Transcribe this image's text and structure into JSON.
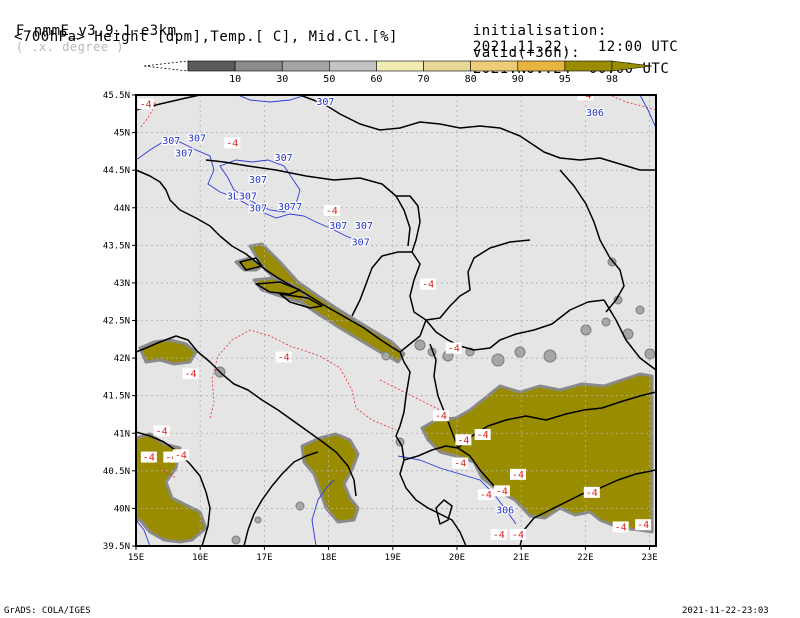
{
  "header": {
    "model_title": "F-nmmE_v3.9.1-e3km",
    "resolution_note": "( .x. degree )",
    "init_label": "initialisation:",
    "init_value": "2021.11.22.   12:00 UTC",
    "subtitle": "<700hPa> Height [dpm],Temp.[ C], Mid.Cl.[%]",
    "valid_label": "valid(+36h):",
    "valid_value": "2021.NOV.24  00:00 UTC"
  },
  "colorbar": {
    "labels": [
      "10",
      "30",
      "50",
      "60",
      "70",
      "80",
      "90",
      "95",
      "98"
    ],
    "colors": [
      "#5a5a5a",
      "#8c8c8c",
      "#a5a5a5",
      "#c3c3c3",
      "#f0ecb4",
      "#e8d896",
      "#eccc78",
      "#e9b440",
      "#9a8c00"
    ]
  },
  "map": {
    "background_color": "#e5e5e5",
    "cloud_color": "#9a8c00",
    "x_ticks": [
      "15E",
      "16E",
      "17E",
      "18E",
      "19E",
      "20E",
      "21E",
      "22E",
      "23E"
    ],
    "y_ticks": [
      "45.5N",
      "45N",
      "44.5N",
      "44N",
      "43.5N",
      "43N",
      "42.5N",
      "42N",
      "41.5N",
      "41N",
      "40.5N",
      "40N",
      "39.5N"
    ],
    "height_labels": [
      {
        "text": "307",
        "lon": 17.95,
        "lat": 45.37
      },
      {
        "text": "307",
        "lon": 15.55,
        "lat": 44.85
      },
      {
        "text": "307",
        "lon": 15.95,
        "lat": 44.88
      },
      {
        "text": "307",
        "lon": 15.75,
        "lat": 44.68
      },
      {
        "text": "307",
        "lon": 17.3,
        "lat": 44.62
      },
      {
        "text": "307",
        "lon": 16.9,
        "lat": 44.33
      },
      {
        "text": "3L307",
        "lon": 16.65,
        "lat": 44.11
      },
      {
        "text": "307",
        "lon": 16.9,
        "lat": 43.95
      },
      {
        "text": "3077",
        "lon": 17.4,
        "lat": 43.97
      },
      {
        "text": "307",
        "lon": 18.15,
        "lat": 43.72
      },
      {
        "text": "307",
        "lon": 18.55,
        "lat": 43.72
      },
      {
        "text": "307",
        "lon": 18.5,
        "lat": 43.5
      },
      {
        "text": "306",
        "lon": 22.15,
        "lat": 45.22
      },
      {
        "text": "306",
        "lon": 20.75,
        "lat": 39.93
      }
    ],
    "temp_labels": [
      {
        "text": "-4",
        "lon": 15.15,
        "lat": 45.35
      },
      {
        "text": "-4",
        "lon": 22.0,
        "lat": 45.47
      },
      {
        "text": "-4",
        "lon": 16.5,
        "lat": 44.83
      },
      {
        "text": "-4",
        "lon": 18.05,
        "lat": 43.93
      },
      {
        "text": "-4",
        "lon": 19.55,
        "lat": 42.95
      },
      {
        "text": "-4",
        "lon": 19.95,
        "lat": 42.1
      },
      {
        "text": "-4",
        "lon": 17.3,
        "lat": 41.98
      },
      {
        "text": "-4",
        "lon": 15.85,
        "lat": 41.76
      },
      {
        "text": "-4",
        "lon": 19.75,
        "lat": 41.2
      },
      {
        "text": "-4",
        "lon": 15.4,
        "lat": 41.0
      },
      {
        "text": "-4",
        "lon": 20.1,
        "lat": 40.88
      },
      {
        "text": "-4",
        "lon": 20.4,
        "lat": 40.95
      },
      {
        "text": "-4",
        "lon": 20.05,
        "lat": 40.57
      },
      {
        "text": "-4",
        "lon": 15.2,
        "lat": 40.65
      },
      {
        "text": "-4",
        "lon": 15.55,
        "lat": 40.65
      },
      {
        "text": "-4",
        "lon": 15.7,
        "lat": 40.68
      },
      {
        "text": "-4",
        "lon": 20.45,
        "lat": 40.15
      },
      {
        "text": "-4",
        "lon": 20.7,
        "lat": 40.2
      },
      {
        "text": "-4",
        "lon": 20.95,
        "lat": 40.42
      },
      {
        "text": "-4",
        "lon": 22.1,
        "lat": 40.18
      },
      {
        "text": "-4",
        "lon": 20.65,
        "lat": 39.62
      },
      {
        "text": "-4",
        "lon": 20.95,
        "lat": 39.62
      },
      {
        "text": "-4",
        "lon": 22.55,
        "lat": 39.72
      },
      {
        "text": "-4",
        "lon": 22.9,
        "lat": 39.75
      }
    ]
  },
  "footer": {
    "left": "GrADS: COLA/IGES",
    "right": "2021-11-22-23:03"
  }
}
